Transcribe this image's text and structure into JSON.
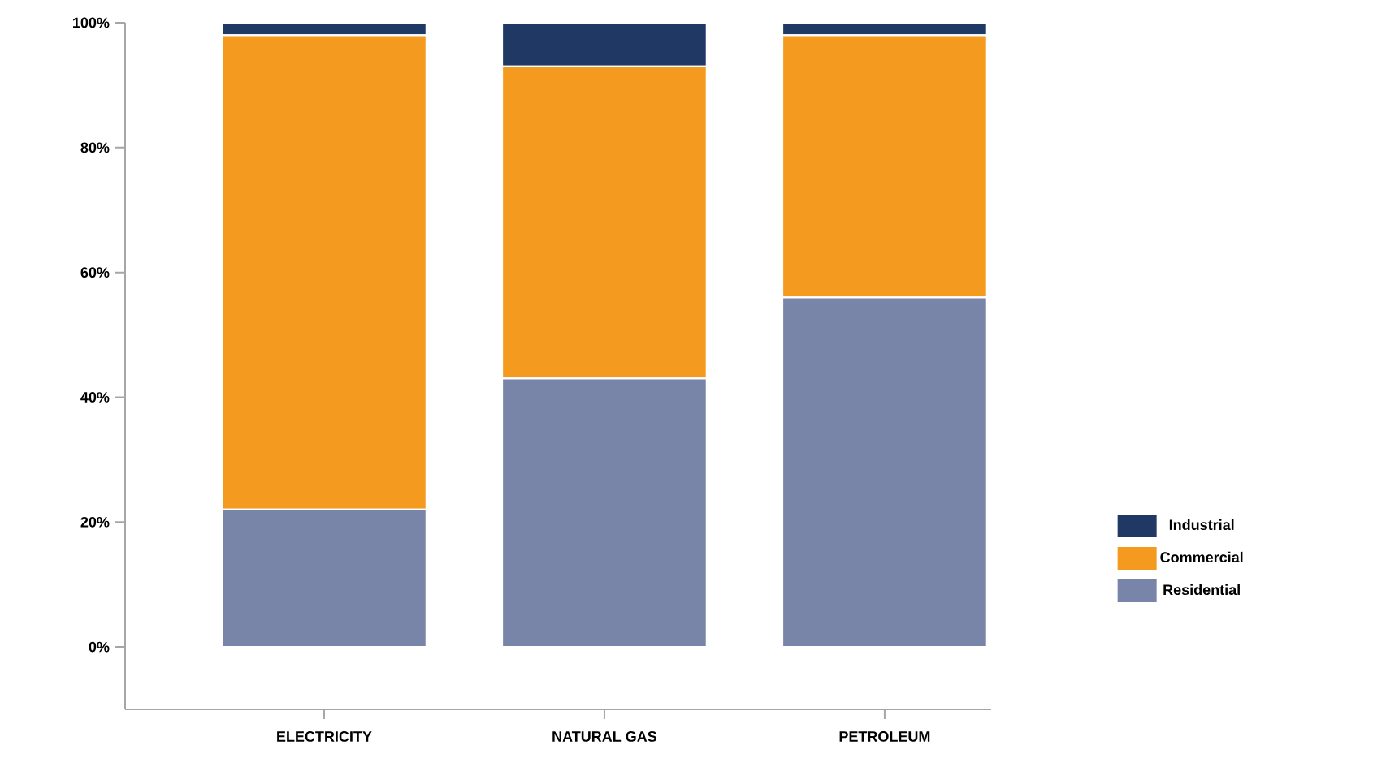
{
  "chart_data": {
    "type": "bar",
    "stacked": true,
    "categories": [
      "ELECTRICITY",
      "NATURAL GAS",
      "PETROLEUM"
    ],
    "series": [
      {
        "name": "Residential",
        "color": "#7884a8",
        "values": [
          22,
          43,
          56
        ]
      },
      {
        "name": "Commercial",
        "color": "#f49b1f",
        "values": [
          76,
          50,
          42
        ]
      },
      {
        "name": "Industrial",
        "color": "#1f3864",
        "values": [
          2,
          7,
          2
        ]
      }
    ],
    "ylim": [
      -10,
      100
    ],
    "yticks": [
      {
        "value": 0,
        "label": "0%"
      },
      {
        "value": 20,
        "label": "20%"
      },
      {
        "value": 40,
        "label": "40%"
      },
      {
        "value": 60,
        "label": "60%"
      },
      {
        "value": 80,
        "label": "80%"
      },
      {
        "value": 100,
        "label": "100%"
      }
    ],
    "legend": "right",
    "grid": false
  }
}
